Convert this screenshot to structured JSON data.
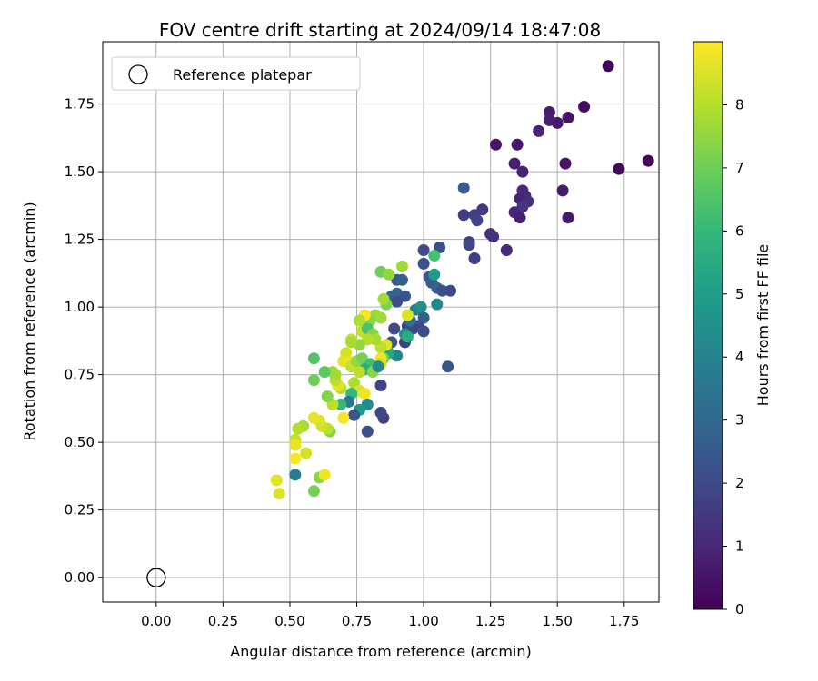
{
  "chart_data": {
    "type": "scatter",
    "title": "FOV centre drift starting at 2024/09/14 18:47:08",
    "xlabel": "Angular distance from reference (arcmin)",
    "ylabel": "Rotation from reference (arcmin)",
    "xlim": [
      -0.2,
      1.88
    ],
    "ylim": [
      -0.09,
      1.98
    ],
    "x_ticks": [
      "0.00",
      "0.25",
      "0.50",
      "0.75",
      "1.00",
      "1.25",
      "1.50",
      "1.75"
    ],
    "y_ticks": [
      "0.00",
      "0.25",
      "0.50",
      "0.75",
      "1.00",
      "1.25",
      "1.50",
      "1.75"
    ],
    "grid": true,
    "legend": {
      "position": "top-left",
      "entries": [
        "Reference platepar"
      ]
    },
    "colorbar": {
      "label": "Hours from first FF file",
      "range": [
        0,
        9
      ],
      "ticks": [
        "0",
        "1",
        "2",
        "3",
        "4",
        "5",
        "6",
        "7",
        "8"
      ],
      "colormap": "viridis",
      "stops": [
        "#440154",
        "#482878",
        "#3e4a89",
        "#31688e",
        "#26828e",
        "#1f9e89",
        "#35b779",
        "#6ece58",
        "#b5de2b",
        "#fde725"
      ]
    },
    "reference_point": {
      "x": 0.0,
      "y": 0.0
    },
    "points": [
      [
        1.69,
        1.89,
        0.1
      ],
      [
        1.84,
        1.54,
        0.1
      ],
      [
        1.73,
        1.51,
        0.2
      ],
      [
        1.6,
        1.74,
        0.3
      ],
      [
        1.54,
        1.7,
        0.5
      ],
      [
        1.5,
        1.68,
        0.6
      ],
      [
        1.47,
        1.72,
        0.7
      ],
      [
        1.47,
        1.69,
        0.8
      ],
      [
        1.53,
        1.53,
        0.5
      ],
      [
        1.52,
        1.43,
        0.7
      ],
      [
        1.54,
        1.33,
        0.6
      ],
      [
        1.43,
        1.65,
        0.9
      ],
      [
        1.27,
        1.6,
        0.5
      ],
      [
        1.35,
        1.6,
        0.6
      ],
      [
        1.34,
        1.53,
        0.8
      ],
      [
        1.37,
        1.5,
        0.9
      ],
      [
        1.37,
        1.43,
        1.0
      ],
      [
        1.38,
        1.41,
        1.1
      ],
      [
        1.36,
        1.4,
        0.9
      ],
      [
        1.39,
        1.39,
        1.2
      ],
      [
        1.37,
        1.37,
        1.4
      ],
      [
        1.34,
        1.35,
        1.0
      ],
      [
        1.36,
        1.33,
        0.8
      ],
      [
        1.31,
        1.21,
        1.0
      ],
      [
        1.25,
        1.27,
        1.2
      ],
      [
        1.26,
        1.26,
        1.3
      ],
      [
        1.22,
        1.36,
        1.5
      ],
      [
        1.15,
        1.34,
        1.6
      ],
      [
        1.19,
        1.34,
        1.7
      ],
      [
        1.2,
        1.32,
        1.8
      ],
      [
        1.17,
        1.24,
        1.6
      ],
      [
        1.17,
        1.23,
        1.9
      ],
      [
        1.19,
        1.18,
        1.7
      ],
      [
        1.15,
        1.44,
        2.6
      ],
      [
        1.06,
        1.22,
        2.2
      ],
      [
        1.0,
        1.21,
        2.0
      ],
      [
        1.0,
        1.16,
        2.3
      ],
      [
        1.02,
        1.11,
        2.5
      ],
      [
        1.03,
        1.09,
        2.6
      ],
      [
        1.05,
        1.07,
        2.8
      ],
      [
        1.07,
        1.06,
        2.2
      ],
      [
        1.1,
        1.06,
        2.0
      ],
      [
        1.04,
        1.12,
        4.9
      ],
      [
        1.04,
        1.19,
        6.3
      ],
      [
        1.05,
        1.01,
        4.2
      ],
      [
        1.09,
        0.78,
        2.4
      ],
      [
        0.97,
        0.99,
        3.8
      ],
      [
        0.99,
        1.0,
        4.5
      ],
      [
        1.0,
        0.96,
        2.7
      ],
      [
        0.98,
        0.93,
        2.1
      ],
      [
        0.96,
        0.92,
        1.8
      ],
      [
        1.0,
        0.91,
        2.0
      ],
      [
        0.93,
        0.87,
        1.7
      ],
      [
        0.94,
        0.93,
        1.9
      ],
      [
        0.95,
        0.95,
        3.4
      ],
      [
        0.94,
        0.97,
        8.5
      ],
      [
        0.93,
        0.9,
        4.4
      ],
      [
        0.94,
        0.89,
        5.5
      ],
      [
        0.9,
        1.1,
        2.5
      ],
      [
        0.92,
        1.1,
        2.8
      ],
      [
        0.9,
        1.05,
        3.0
      ],
      [
        0.93,
        1.04,
        2.3
      ],
      [
        0.88,
        1.04,
        2.9
      ],
      [
        0.9,
        1.02,
        2.1
      ],
      [
        0.86,
        1.01,
        7.2
      ],
      [
        0.85,
        1.03,
        7.8
      ],
      [
        0.84,
        1.13,
        7.0
      ],
      [
        0.87,
        1.12,
        7.5
      ],
      [
        0.92,
        1.15,
        7.7
      ],
      [
        0.89,
        0.92,
        2.0
      ],
      [
        0.88,
        0.87,
        2.3
      ],
      [
        0.9,
        0.82,
        4.1
      ],
      [
        0.87,
        0.83,
        5.3
      ],
      [
        0.85,
        0.81,
        7.1
      ],
      [
        0.86,
        0.86,
        8.6
      ],
      [
        0.84,
        0.85,
        8.1
      ],
      [
        0.84,
        0.81,
        8.8
      ],
      [
        0.84,
        0.79,
        8.4
      ],
      [
        0.82,
        0.97,
        7.6
      ],
      [
        0.84,
        0.96,
        7.7
      ],
      [
        0.8,
        0.95,
        7.4
      ],
      [
        0.78,
        0.97,
        8.9
      ],
      [
        0.76,
        0.95,
        7.9
      ],
      [
        0.77,
        0.91,
        8.2
      ],
      [
        0.79,
        0.92,
        6.4
      ],
      [
        0.81,
        0.9,
        7.3
      ],
      [
        0.82,
        0.88,
        7.8
      ],
      [
        0.79,
        0.88,
        8.0
      ],
      [
        0.76,
        0.86,
        7.5
      ],
      [
        0.73,
        0.88,
        8.3
      ],
      [
        0.73,
        0.87,
        7.8
      ],
      [
        0.71,
        0.83,
        8.4
      ],
      [
        0.7,
        0.8,
        8.6
      ],
      [
        0.72,
        0.8,
        8.7
      ],
      [
        0.73,
        0.78,
        8.2
      ],
      [
        0.75,
        0.8,
        7.6
      ],
      [
        0.77,
        0.81,
        7.1
      ],
      [
        0.8,
        0.79,
        6.3
      ],
      [
        0.78,
        0.77,
        5.6
      ],
      [
        0.81,
        0.76,
        7.4
      ],
      [
        0.83,
        0.78,
        4.2
      ],
      [
        0.76,
        0.76,
        8.1
      ],
      [
        0.74,
        0.72,
        7.9
      ],
      [
        0.76,
        0.69,
        8.5
      ],
      [
        0.78,
        0.68,
        8.8
      ],
      [
        0.73,
        0.68,
        6.0
      ],
      [
        0.72,
        0.65,
        3.6
      ],
      [
        0.69,
        0.64,
        5.9
      ],
      [
        0.66,
        0.64,
        8.1
      ],
      [
        0.64,
        0.67,
        7.3
      ],
      [
        0.69,
        0.7,
        8.0
      ],
      [
        0.68,
        0.71,
        8.6
      ],
      [
        0.67,
        0.73,
        8.1
      ],
      [
        0.67,
        0.75,
        7.8
      ],
      [
        0.66,
        0.76,
        7.7
      ],
      [
        0.63,
        0.76,
        6.7
      ],
      [
        0.59,
        0.73,
        7.0
      ],
      [
        0.59,
        0.81,
        6.5
      ],
      [
        0.84,
        0.71,
        1.8
      ],
      [
        0.85,
        0.59,
        1.7
      ],
      [
        0.84,
        0.61,
        1.9
      ],
      [
        0.79,
        0.54,
        2.2
      ],
      [
        0.79,
        0.64,
        4.3
      ],
      [
        0.76,
        0.62,
        4.8
      ],
      [
        0.74,
        0.6,
        2.4
      ],
      [
        0.7,
        0.59,
        8.9
      ],
      [
        0.65,
        0.54,
        7.3
      ],
      [
        0.64,
        0.55,
        8.1
      ],
      [
        0.62,
        0.56,
        8.3
      ],
      [
        0.61,
        0.58,
        8.5
      ],
      [
        0.59,
        0.59,
        8.7
      ],
      [
        0.55,
        0.56,
        7.8
      ],
      [
        0.53,
        0.55,
        8.0
      ],
      [
        0.56,
        0.46,
        8.4
      ],
      [
        0.52,
        0.51,
        8.2
      ],
      [
        0.52,
        0.49,
        8.7
      ],
      [
        0.52,
        0.44,
        8.9
      ],
      [
        0.52,
        0.38,
        3.8
      ],
      [
        0.61,
        0.37,
        7.4
      ],
      [
        0.63,
        0.38,
        8.8
      ],
      [
        0.59,
        0.32,
        7.1
      ],
      [
        0.45,
        0.36,
        8.6
      ],
      [
        0.46,
        0.31,
        8.5
      ]
    ]
  }
}
